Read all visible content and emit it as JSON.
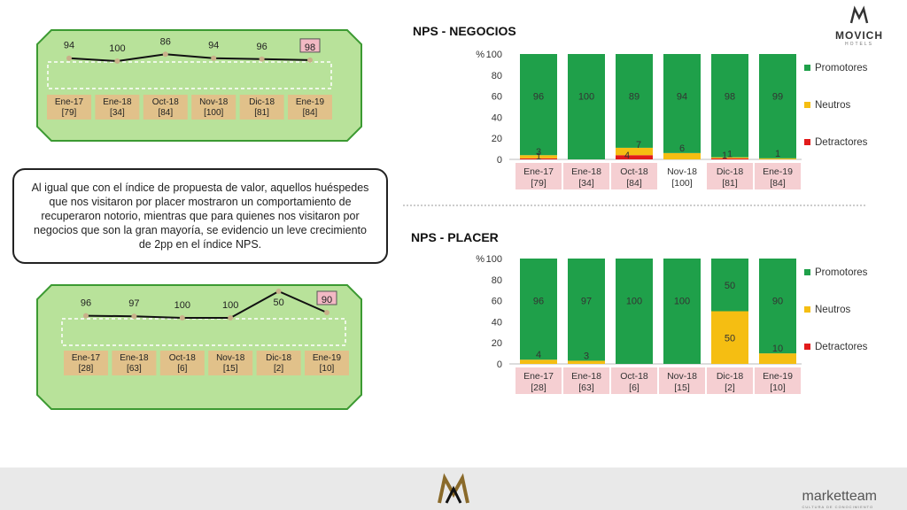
{
  "brand": {
    "name": "MOVICH",
    "subtitle": "HOTELS",
    "footer": "marketteam",
    "footer_tagline": "CULTURA DE CONOCIMIENTO"
  },
  "callout": {
    "text": "Al igual que con el índice de propuesta de valor, aquellos huéspedes que nos visitaron por placer mostraron un comportamiento de recuperaron notorio, mientras que para quienes nos visitaron por negocios que son la gran mayoría, se evidencio un leve crecimiento de 2pp en el índice NPS."
  },
  "colors": {
    "promotores": "#1fa04a",
    "neutros": "#f5be12",
    "detractores": "#e21b1b",
    "panel": "#b8e29a",
    "panel_border": "#3c9a32",
    "label_tan": "#e1c18a",
    "label_pink": "#f5cfd2"
  },
  "chart_data": [
    {
      "type": "line",
      "categories": [
        "Ene-17",
        "Ene-18",
        "Oct-18",
        "Nov-18",
        "Dic-18",
        "Ene-19"
      ],
      "sample_sizes": [
        "[79]",
        "[34]",
        "[84]",
        "[100]",
        "[81]",
        "[84]"
      ],
      "values": [
        94,
        100,
        86,
        94,
        96,
        98
      ]
    },
    {
      "type": "line",
      "categories": [
        "Ene-17",
        "Ene-18",
        "Oct-18",
        "Nov-18",
        "Dic-18",
        "Ene-19"
      ],
      "sample_sizes": [
        "[28]",
        "[63]",
        "[6]",
        "[15]",
        "[2]",
        "[10]"
      ],
      "values": [
        96,
        97,
        100,
        100,
        50,
        90
      ]
    },
    {
      "type": "bar",
      "stacked": true,
      "title": "NPS - NEGOCIOS",
      "ylabel": "%",
      "ylim": [
        0,
        100
      ],
      "yticks": [
        0,
        20,
        40,
        60,
        80,
        100
      ],
      "categories": [
        "Ene-17",
        "Ene-18",
        "Oct-18",
        "Nov-18",
        "Dic-18",
        "Ene-19"
      ],
      "sample_sizes": [
        "[79]",
        "[34]",
        "[84]",
        "[100]",
        "[81]",
        "[84]"
      ],
      "legend": "right",
      "series": [
        {
          "name": "Detractores",
          "values": [
            1,
            0,
            4,
            0,
            1,
            0
          ],
          "labels": [
            "1",
            "",
            "4",
            "",
            "1",
            ""
          ]
        },
        {
          "name": "Neutros",
          "values": [
            3,
            0,
            7,
            6,
            1,
            1
          ],
          "labels": [
            "3",
            "",
            "7",
            "6",
            "1",
            "1"
          ]
        },
        {
          "name": "Promotores",
          "values": [
            96,
            100,
            89,
            94,
            98,
            99
          ],
          "labels": [
            "96",
            "100",
            "89",
            "94",
            "98",
            "99"
          ]
        }
      ],
      "legend_order": [
        "Promotores",
        "Neutros",
        "Detractores"
      ]
    },
    {
      "type": "bar",
      "stacked": true,
      "title": "NPS - PLACER",
      "ylabel": "%",
      "ylim": [
        0,
        100
      ],
      "yticks": [
        0,
        20,
        40,
        60,
        80,
        100
      ],
      "categories": [
        "Ene-17",
        "Ene-18",
        "Oct-18",
        "Nov-18",
        "Dic-18",
        "Ene-19"
      ],
      "sample_sizes": [
        "[28]",
        "[63]",
        "[6]",
        "[15]",
        "[2]",
        "[10]"
      ],
      "legend": "right",
      "series": [
        {
          "name": "Detractores",
          "values": [
            0,
            0,
            0,
            0,
            0,
            0
          ],
          "labels": [
            "",
            "",
            "",
            "",
            "",
            ""
          ]
        },
        {
          "name": "Neutros",
          "values": [
            4,
            3,
            0,
            0,
            50,
            10
          ],
          "labels": [
            "4",
            "3",
            "",
            "",
            "50",
            "10"
          ]
        },
        {
          "name": "Promotores",
          "values": [
            96,
            97,
            100,
            100,
            50,
            90
          ],
          "labels": [
            "96",
            "97",
            "100",
            "100",
            "50",
            "90"
          ]
        }
      ],
      "legend_order": [
        "Promotores",
        "Neutros",
        "Detractores"
      ]
    }
  ]
}
